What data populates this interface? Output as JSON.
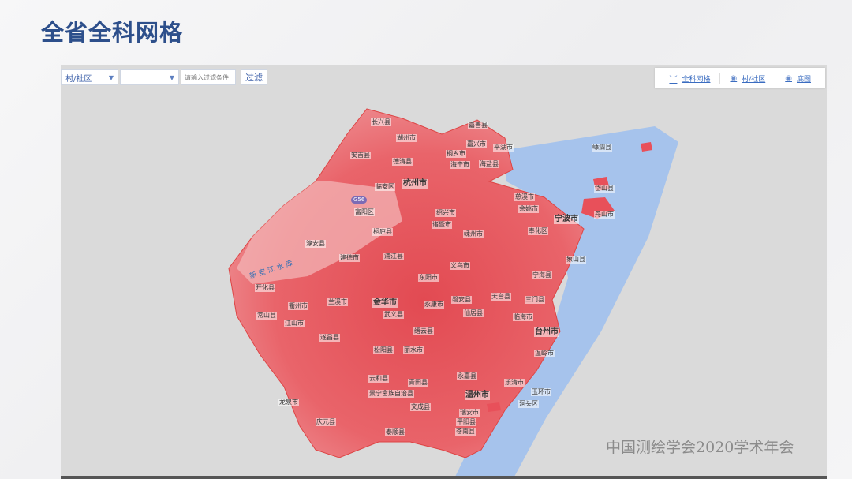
{
  "header": {
    "title": "全省全科网格"
  },
  "toolbar": {
    "level_select": "村/社区",
    "second_select": "",
    "filter_placeholder": "请输入过滤条件",
    "filter_button": "过滤"
  },
  "layers": [
    {
      "label": "全科网格",
      "icon": "wave-icon"
    },
    {
      "label": "村/社区",
      "icon": "eye-icon"
    },
    {
      "label": "底图",
      "icon": "eye-icon"
    }
  ],
  "map": {
    "colors": {
      "land": "#e8505a",
      "land_light": "#f2a4a6",
      "sea": "#a6c3ec",
      "background": "#dadada"
    },
    "road_label": "G56",
    "river_label": "新安江水库",
    "places": [
      "长兴县",
      "湖州市",
      "嘉善县",
      "嘉兴市",
      "桐乡市",
      "平湖市",
      "海盐县",
      "海宁市",
      "安吉县",
      "德清县",
      "临安区",
      "杭州市",
      "富阳区",
      "慈溪市",
      "余姚市",
      "嵊泗县",
      "岱山县",
      "舟山市",
      "宁波市",
      "绍兴市",
      "桐庐县",
      "诸暨市",
      "嵊州市",
      "奉化区",
      "象山县",
      "淳安县",
      "建德市",
      "浦江县",
      "义乌市",
      "宁海县",
      "三门县",
      "天台县",
      "开化县",
      "兰溪市",
      "金华市",
      "东阳市",
      "磐安县",
      "仙居县",
      "临海市",
      "衢州市",
      "常山县",
      "江山市",
      "武义县",
      "永康市",
      "缙云县",
      "台州市",
      "遂昌县",
      "松阳县",
      "丽水市",
      "温岭市",
      "龙泉市",
      "云和县",
      "景宁畲族自治县",
      "青田县",
      "永嘉县",
      "乐清市",
      "玉环市",
      "温州市",
      "洞头区",
      "庆元县",
      "文成县",
      "瑞安市",
      "泰顺县",
      "平阳县",
      "苍南县"
    ]
  },
  "watermark": "中国测绘学会2020学术年会"
}
